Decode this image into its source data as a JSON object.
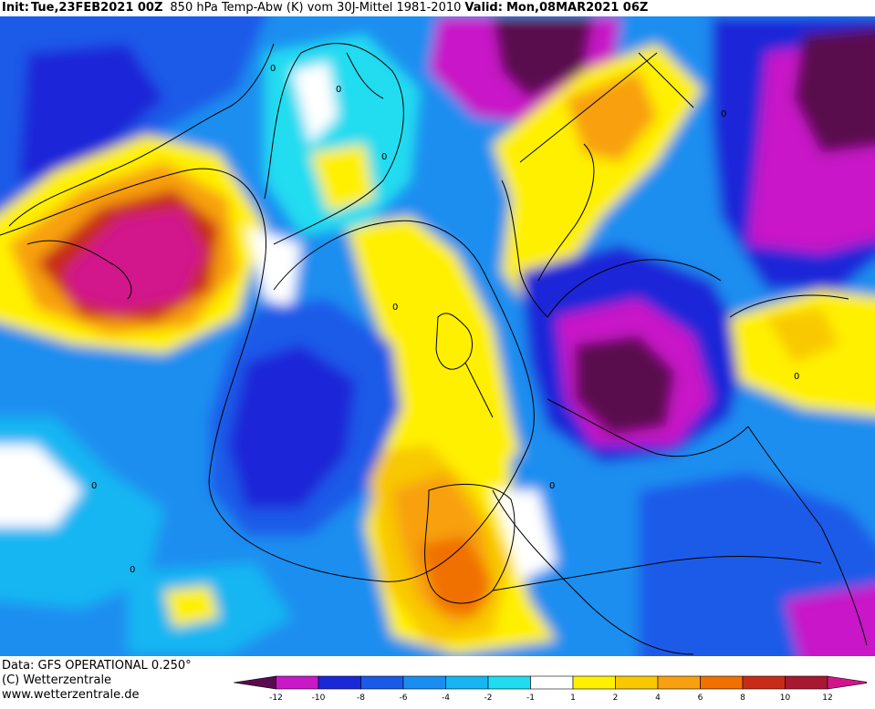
{
  "header": {
    "init_label": "Init:",
    "init_value": "Tue,23FEB2021 00Z",
    "description": "850 hPa Temp-Abw (K) vom 30J-Mittel 1981-2010",
    "valid_label": "Valid:",
    "valid_value": "Mon,08MAR2021 06Z"
  },
  "footer": {
    "data_source": "Data: GFS OPERATIONAL 0.250°",
    "copyright": "(C) Wetterzentrale",
    "website": "www.wetterzentrale.de"
  },
  "contour_labels": [
    "0",
    "0",
    "0",
    "0",
    "0",
    "0",
    "0",
    "0",
    "0"
  ],
  "colorbar": {
    "ticks": [
      "-12",
      "-10",
      "-8",
      "-6",
      "-4",
      "-2",
      "-1",
      "1",
      "2",
      "4",
      "6",
      "8",
      "10",
      "12"
    ],
    "colors": [
      "#5a0a4e",
      "#c818c8",
      "#1a28d8",
      "#1a5ae8",
      "#1a8ef0",
      "#16b6f2",
      "#20dcf0",
      "#ffffff",
      "#fff000",
      "#f8c800",
      "#f8a010",
      "#f07000",
      "#c82c18",
      "#a81830",
      "#d2148c"
    ]
  },
  "colors": {
    "background": "#ffffff",
    "coastline": "#000000"
  }
}
